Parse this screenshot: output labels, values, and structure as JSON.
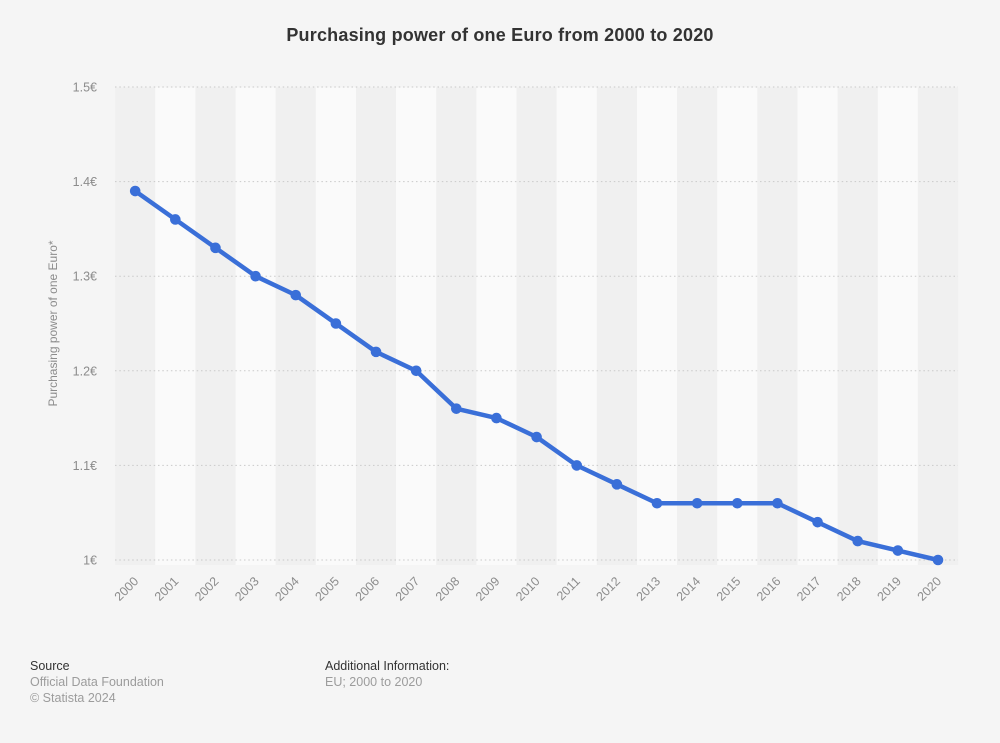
{
  "page": {
    "title": "Purchasing power of one Euro from 2000 to 2020",
    "background_color": "#f5f5f5"
  },
  "chart_data": {
    "type": "line",
    "title": "Purchasing power of one Euro from 2000 to 2020",
    "xlabel": "",
    "ylabel": "Purchasing power of one Euro*",
    "x": [
      2000,
      2001,
      2002,
      2003,
      2004,
      2005,
      2006,
      2007,
      2008,
      2009,
      2010,
      2011,
      2012,
      2013,
      2014,
      2015,
      2016,
      2017,
      2018,
      2019,
      2020
    ],
    "series": [
      {
        "name": "Purchasing power of one Euro",
        "values": [
          1.39,
          1.36,
          1.33,
          1.3,
          1.28,
          1.25,
          1.22,
          1.2,
          1.16,
          1.15,
          1.13,
          1.1,
          1.08,
          1.06,
          1.06,
          1.06,
          1.06,
          1.04,
          1.02,
          1.01,
          1.0
        ]
      }
    ],
    "ylim": [
      1.0,
      1.5
    ],
    "yticks": [
      1.0,
      1.1,
      1.2,
      1.3,
      1.4,
      1.5
    ],
    "ytick_labels": [
      "1€",
      "1.1€",
      "1.2€",
      "1.3€",
      "1.4€",
      "1.5€"
    ],
    "grid": "horizontal-dotted",
    "legend_position": "none",
    "line_color": "#3a6fd8",
    "point_color": "#3a6fd8",
    "gridline_color": "#c9c9c9",
    "band_color_even": "#f0f0f0",
    "band_color_odd": "#fafafa",
    "tick_text_color": "#8c8c8c",
    "axis_title_color": "#8c8c8c"
  },
  "footer": {
    "source_label": "Source",
    "source_name": "Official Data Foundation",
    "copyright": "© Statista 2024",
    "additional_info_label": "Additional Information:",
    "additional_info_value": "EU; 2000 to 2020"
  }
}
